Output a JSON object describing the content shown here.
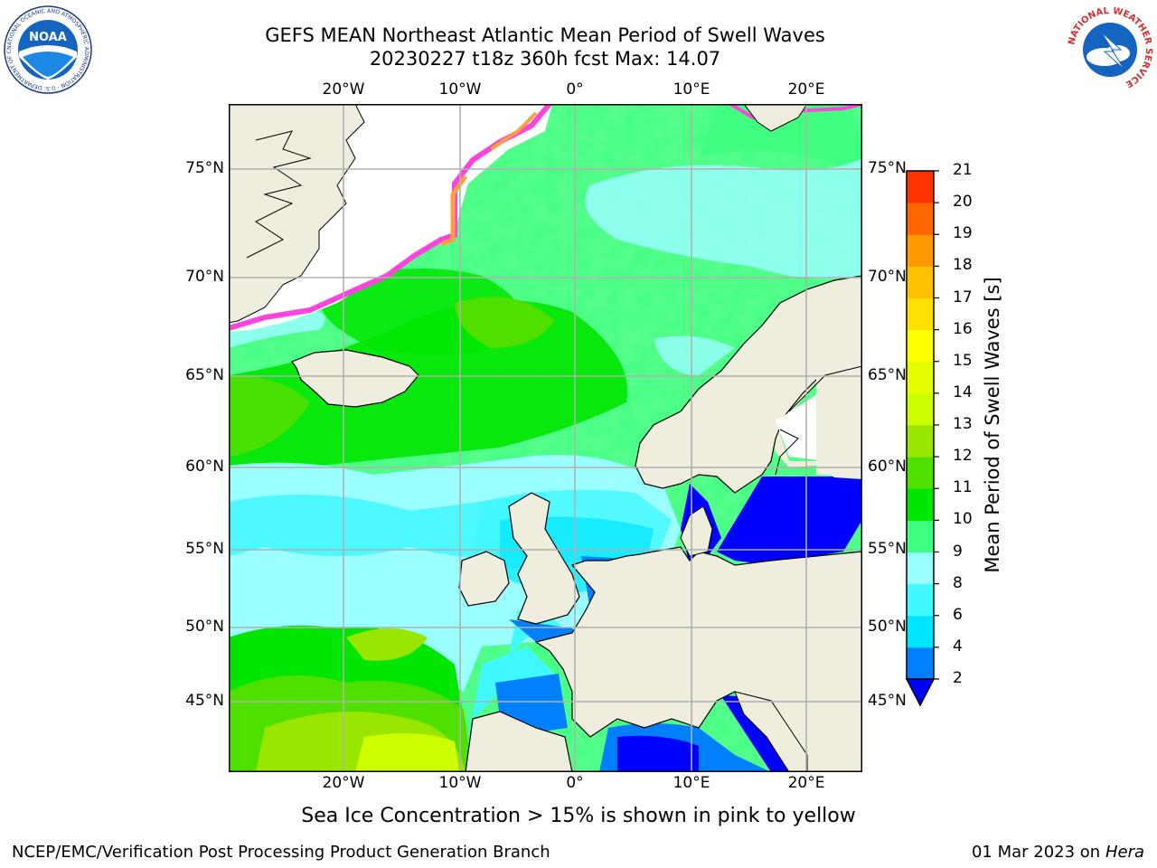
{
  "title": {
    "line1": "GEFS MEAN Northeast Atlantic Mean Period of Swell Waves",
    "line2": "20230227 t18z 360h fcst   Max: 14.07"
  },
  "logos": {
    "left": "NOAA",
    "left_ring": "NATIONAL OCEANIC AND ATMOSPHERIC ADMINISTRATION · U.S. DEPARTMENT OF COMMERCE",
    "right_ring": "NATIONAL WEATHER SERVICE"
  },
  "map": {
    "lon_labels": [
      "20°W",
      "10°W",
      "0°",
      "10°E",
      "20°E"
    ],
    "lat_labels": [
      "75°N",
      "70°N",
      "65°N",
      "60°N",
      "55°N",
      "50°N",
      "45°N"
    ],
    "colors": {
      "land": "#efedde",
      "grid": "#b0b0b0",
      "ice_pink": "#ff44dd",
      "ice_orange": "#ffa040",
      "ice_yellow": "#ffe060"
    }
  },
  "colorbar": {
    "label": "Mean Period of Swell Waves [s]",
    "ticks": [
      "21",
      "20",
      "19",
      "18",
      "17",
      "16",
      "15",
      "14",
      "13",
      "12",
      "11",
      "10",
      "9",
      "8",
      "6",
      "4",
      "2"
    ],
    "colors": [
      "#0000ff",
      "#0080ff",
      "#00e5ff",
      "#40f8ff",
      "#99ffff",
      "#40ff80",
      "#00e600",
      "#50e000",
      "#99e600",
      "#ccff00",
      "#e6ff00",
      "#ffff00",
      "#ffe000",
      "#ffc000",
      "#ff9900",
      "#ff6600",
      "#ff3300",
      "#ff0000"
    ]
  },
  "note": "Sea Ice Concentration > 15% is shown in pink to yellow",
  "footer": {
    "left": "NCEP/EMC/Verification Post Processing Product Generation Branch",
    "date": "01 Mar 2023 on",
    "host": "Hera"
  }
}
